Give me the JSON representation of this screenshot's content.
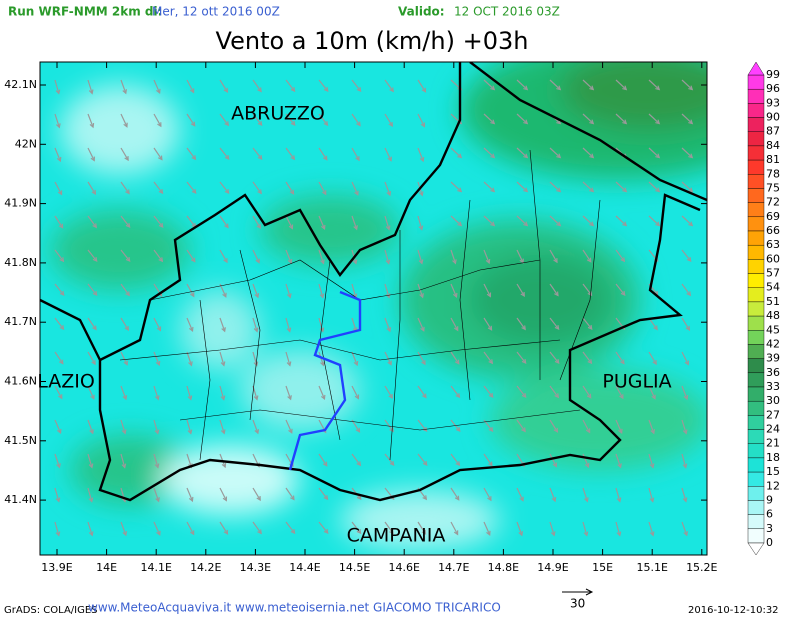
{
  "header": {
    "run_label": "Run WRF-NMM 2km di:",
    "run_date": "Mer, 12 ott 2016 00Z",
    "valid_label": "Valido:",
    "valid_date": "12 OCT 2016 03Z"
  },
  "title": "Vento a 10m (km/h) +03h",
  "lat_labels": [
    "42.1N",
    "42N",
    "41.9N",
    "41.8N",
    "41.7N",
    "41.6N",
    "41.5N",
    "41.4N"
  ],
  "lon_labels": [
    "13.9E",
    "14E",
    "14.1E",
    "14.2E",
    "14.3E",
    "14.4E",
    "14.5E",
    "14.6E",
    "14.7E",
    "14.8E",
    "14.9E",
    "15E",
    "15.1E",
    "15.2E"
  ],
  "regions": [
    "ABRUZZO",
    "LAZIO",
    "PUGLIA",
    "CAMPANIA"
  ],
  "colorbar": {
    "labels": [
      "99",
      "96",
      "93",
      "90",
      "87",
      "84",
      "81",
      "78",
      "75",
      "72",
      "69",
      "66",
      "63",
      "60",
      "57",
      "54",
      "51",
      "48",
      "45",
      "42",
      "39",
      "36",
      "33",
      "30",
      "27",
      "24",
      "21",
      "18",
      "15",
      "12",
      "9",
      "6",
      "3",
      "0"
    ]
  },
  "footer": {
    "grads": "GrADS: COLA/IGES",
    "credits": "www.MeteoAcquaviva.it www.meteoisernia.net GIACOMO TRICARICO",
    "vector_scale": "30",
    "timestamp": "2016-10-12-10:32"
  }
}
